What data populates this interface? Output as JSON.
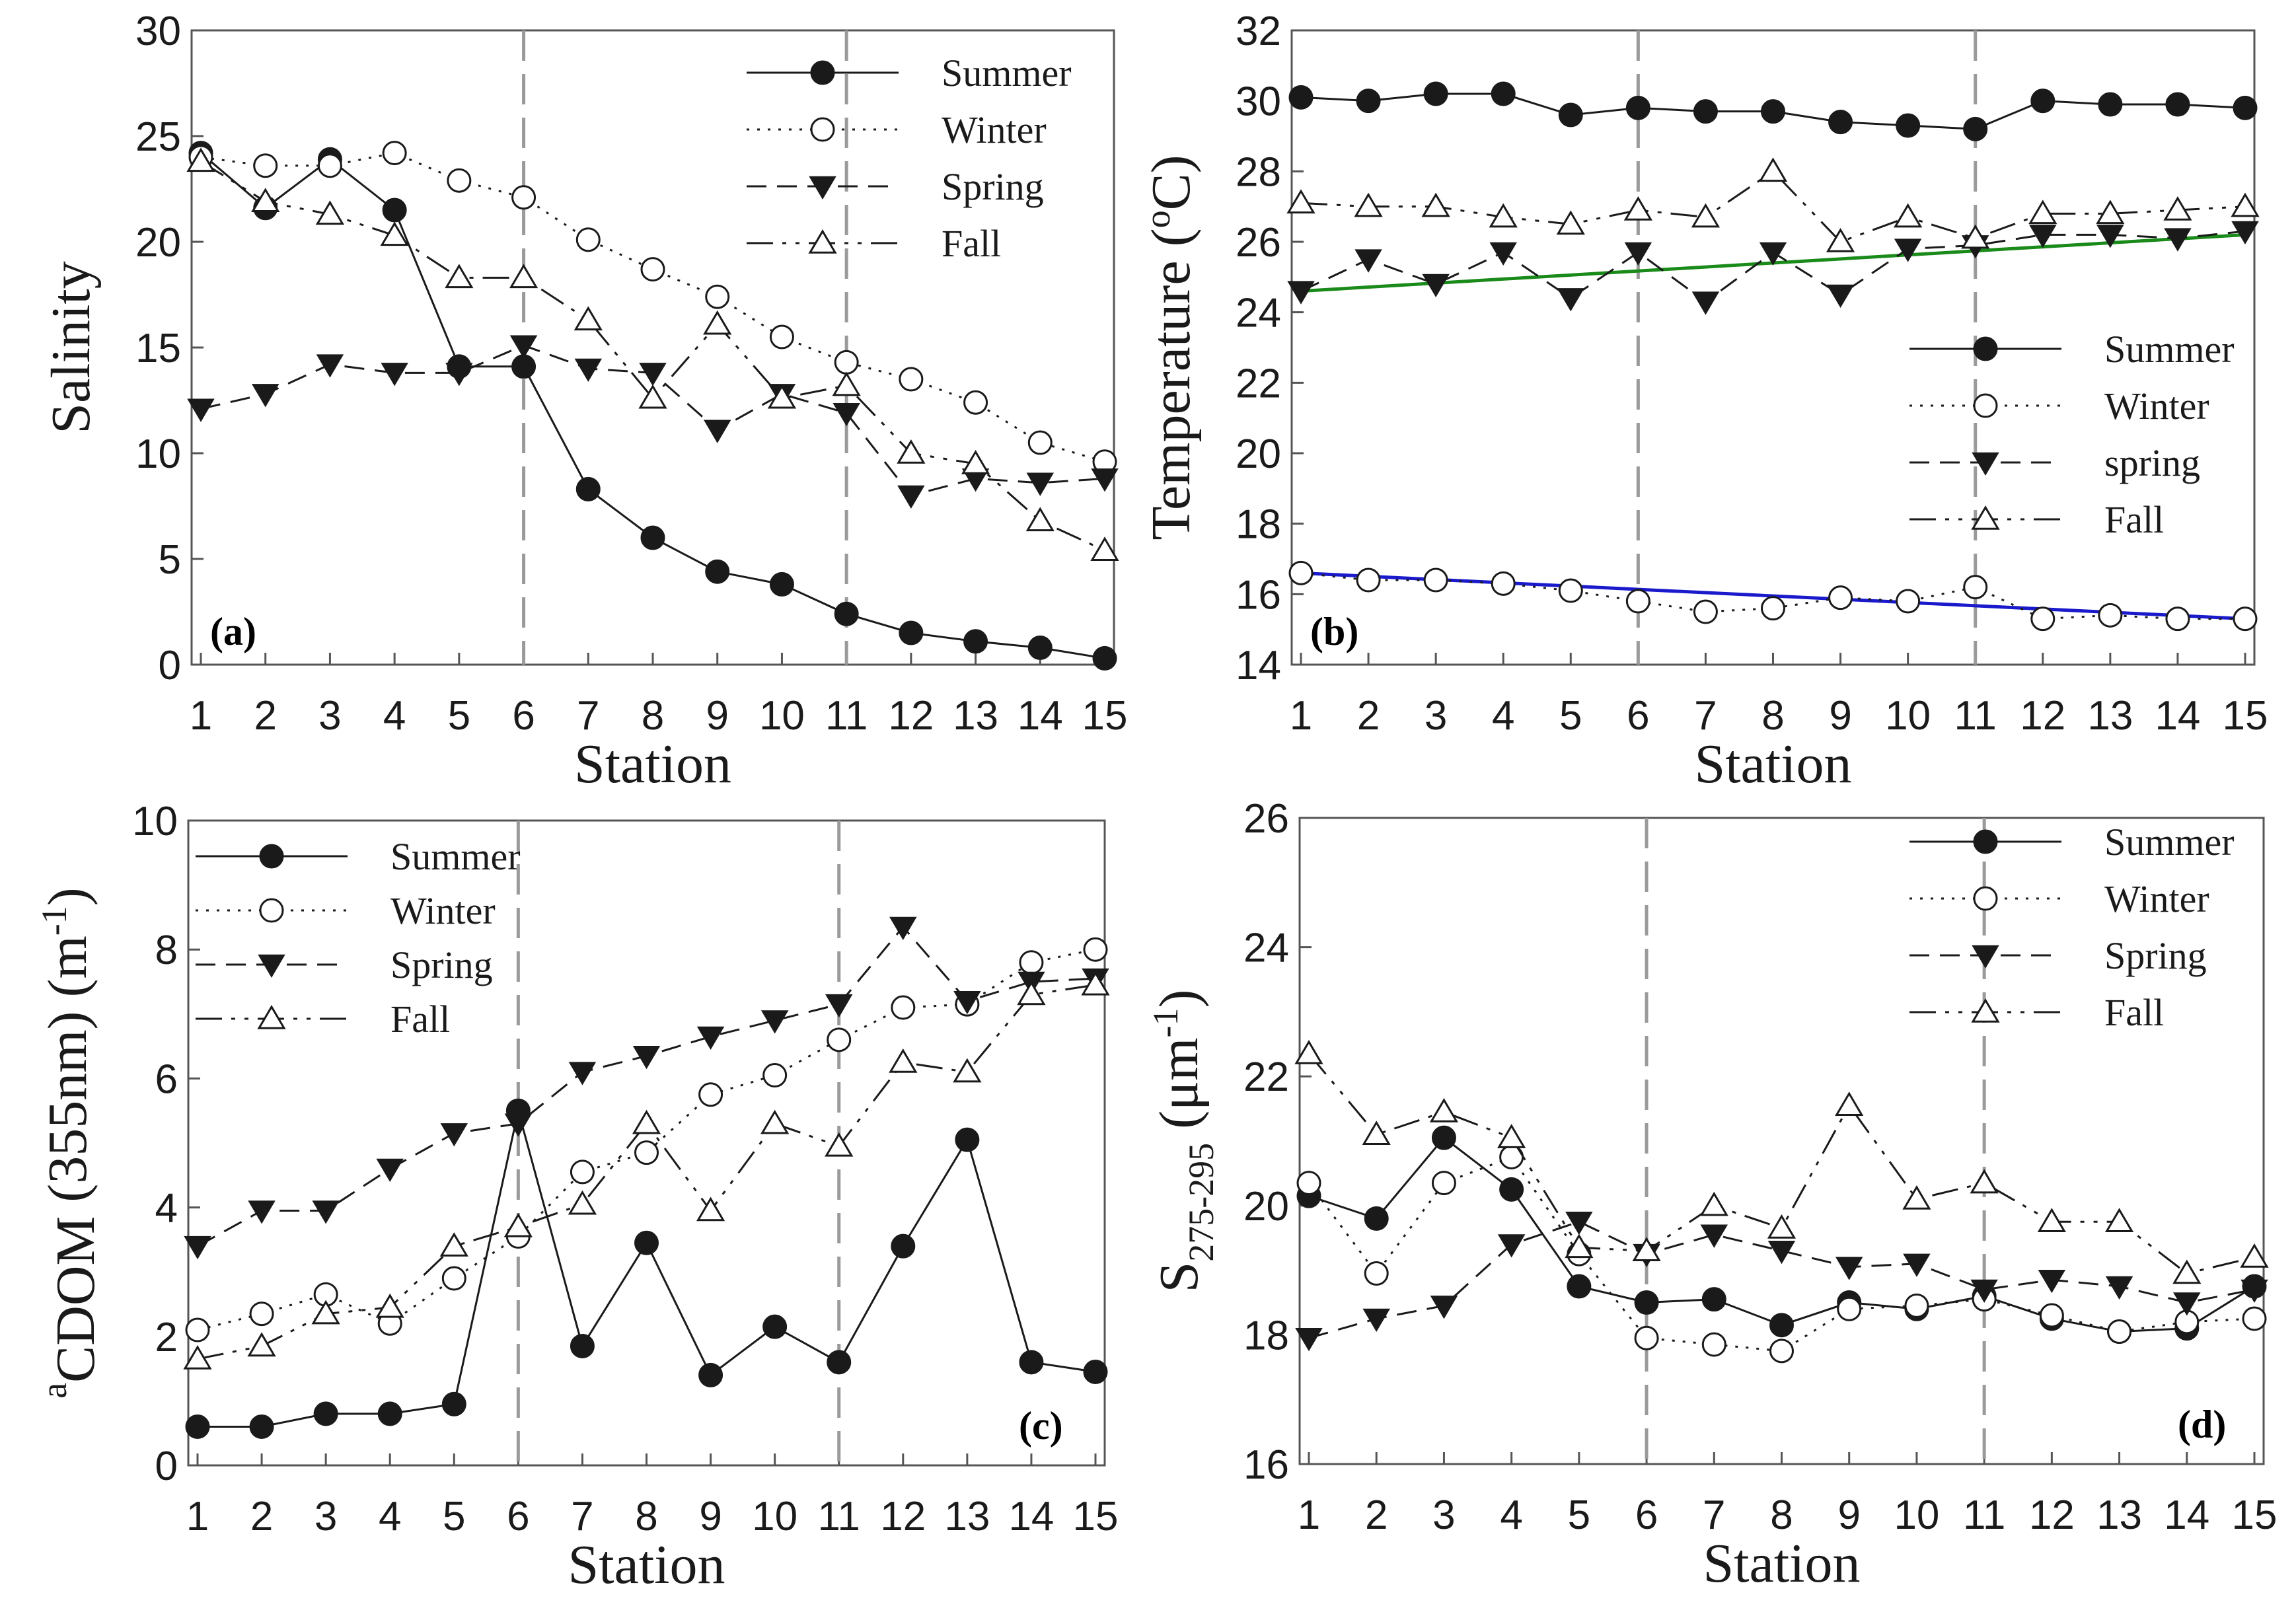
{
  "colors": {
    "series": "#1a1a1a",
    "vref": "#9a9a9a",
    "spring_trend": "#1a8a1a",
    "winter_trend": "#1a1acc"
  },
  "chart_data": [
    {
      "id": "a",
      "type": "line",
      "panel_label": "(a)",
      "ylabel": "Salinity",
      "xlabel": "Station",
      "x": [
        1,
        2,
        3,
        4,
        5,
        6,
        7,
        8,
        9,
        10,
        11,
        12,
        13,
        14,
        15
      ],
      "xticks": [
        "1",
        "2",
        "3",
        "4",
        "5",
        "6",
        "7",
        "8",
        "9",
        "10",
        "11",
        "12",
        "13",
        "14",
        "15"
      ],
      "ylim": [
        0,
        30
      ],
      "yticks": [
        "0",
        "5",
        "10",
        "15",
        "20",
        "25",
        "30"
      ],
      "yticks_val": [
        0,
        5,
        10,
        15,
        20,
        25,
        30
      ],
      "vlines": [
        6,
        11
      ],
      "legend_position": "top-right",
      "series": [
        {
          "name": "Summer",
          "marker": "filled-circle",
          "dash": "solid",
          "values": [
            24.2,
            21.6,
            23.9,
            21.5,
            14.1,
            14.1,
            8.3,
            6.0,
            4.4,
            3.8,
            2.4,
            1.5,
            1.1,
            0.8,
            0.3
          ]
        },
        {
          "name": "Winter",
          "marker": "open-circle",
          "dash": "dotted",
          "values": [
            24.0,
            23.6,
            23.6,
            24.2,
            22.9,
            22.1,
            20.1,
            18.7,
            17.4,
            15.5,
            14.3,
            13.5,
            12.4,
            10.5,
            9.6
          ]
        },
        {
          "name": "Spring",
          "marker": "filled-triangle-down",
          "dash": "dashed",
          "values": [
            12.1,
            12.8,
            14.2,
            13.8,
            13.8,
            15.1,
            14.0,
            13.8,
            11.1,
            12.8,
            11.9,
            8.0,
            8.8,
            8.6,
            8.8
          ]
        },
        {
          "name": "Fall",
          "marker": "open-triangle-up",
          "dash": "dashdotdot",
          "values": [
            23.8,
            21.9,
            21.3,
            20.3,
            18.3,
            18.3,
            16.3,
            12.6,
            16.1,
            12.6,
            13.2,
            10.0,
            9.5,
            6.8,
            5.4
          ]
        }
      ]
    },
    {
      "id": "b",
      "type": "line",
      "panel_label": "(b)",
      "ylabel": "Temperature (",
      "ylabel_sup": "o",
      "ylabel_tail": "C)",
      "xlabel": "Station",
      "x": [
        1,
        2,
        3,
        4,
        5,
        6,
        7,
        8,
        9,
        10,
        11,
        12,
        13,
        14,
        15
      ],
      "xticks": [
        "1",
        "2",
        "3",
        "4",
        "5",
        "6",
        "7",
        "8",
        "9",
        "10",
        "11",
        "12",
        "13",
        "14",
        "15"
      ],
      "ylim": [
        14,
        32
      ],
      "yticks": [
        "14",
        "16",
        "18",
        "20",
        "22",
        "24",
        "26",
        "28",
        "30",
        "32"
      ],
      "yticks_val": [
        14,
        16,
        18,
        20,
        22,
        24,
        26,
        28,
        30,
        32
      ],
      "vlines": [
        6,
        11
      ],
      "legend_position": "middle-right",
      "trendlines": [
        {
          "name": "spring-trend",
          "from": [
            1,
            24.6
          ],
          "to": [
            15,
            26.2
          ],
          "color_key": "spring_trend"
        },
        {
          "name": "winter-trend",
          "from": [
            1,
            16.6
          ],
          "to": [
            15,
            15.3
          ],
          "color_key": "winter_trend"
        }
      ],
      "series": [
        {
          "name": "Summer",
          "marker": "filled-circle",
          "dash": "solid",
          "values": [
            30.1,
            30.0,
            30.2,
            30.2,
            29.6,
            29.8,
            29.7,
            29.7,
            29.4,
            29.3,
            29.2,
            30.0,
            29.9,
            29.9,
            29.8
          ]
        },
        {
          "name": "Winter",
          "marker": "open-circle",
          "dash": "dotted",
          "values": [
            16.6,
            16.4,
            16.4,
            16.3,
            16.1,
            15.8,
            15.5,
            15.6,
            15.9,
            15.8,
            16.2,
            15.3,
            15.4,
            15.3,
            15.3
          ]
        },
        {
          "name": "spring",
          "marker": "filled-triangle-down",
          "dash": "dashed",
          "values": [
            24.6,
            25.5,
            24.8,
            25.7,
            24.4,
            25.7,
            24.3,
            25.7,
            24.5,
            25.8,
            25.9,
            26.2,
            26.2,
            26.1,
            26.3
          ]
        },
        {
          "name": "Fall",
          "marker": "open-triangle-up",
          "dash": "dashdotdot",
          "values": [
            27.1,
            27.0,
            27.0,
            26.7,
            26.5,
            26.9,
            26.7,
            28.0,
            26.0,
            26.7,
            26.1,
            26.8,
            26.8,
            26.9,
            27.0
          ]
        }
      ]
    },
    {
      "id": "c",
      "type": "line",
      "panel_label": "(c)",
      "ylabel_a": "a",
      "ylabel_sub": "CDOM",
      "ylabel_tail": " (355nm) (m",
      "ylabel_sup": "-1",
      "ylabel_end": ")",
      "xlabel": "Station",
      "x": [
        1,
        2,
        3,
        4,
        5,
        6,
        7,
        8,
        9,
        10,
        11,
        12,
        13,
        14,
        15
      ],
      "xticks": [
        "1",
        "2",
        "3",
        "4",
        "5",
        "6",
        "7",
        "8",
        "9",
        "10",
        "11",
        "12",
        "13",
        "14",
        "15"
      ],
      "ylim": [
        0,
        10
      ],
      "yticks": [
        "0",
        "2",
        "4",
        "6",
        "8",
        "10"
      ],
      "yticks_val": [
        0,
        2,
        4,
        6,
        8,
        10
      ],
      "vlines": [
        6,
        11
      ],
      "legend_position": "top-left",
      "series": [
        {
          "name": "Summer",
          "marker": "filled-circle",
          "dash": "solid",
          "values": [
            0.6,
            0.6,
            0.8,
            0.8,
            0.95,
            5.5,
            1.85,
            3.45,
            1.4,
            2.15,
            1.6,
            3.4,
            5.05,
            1.6,
            1.45
          ]
        },
        {
          "name": "Winter",
          "marker": "open-circle",
          "dash": "dotted",
          "values": [
            2.1,
            2.35,
            2.65,
            2.2,
            2.9,
            3.55,
            4.55,
            4.85,
            5.75,
            6.05,
            6.6,
            7.1,
            7.15,
            7.8,
            8.0
          ]
        },
        {
          "name": "Spring",
          "marker": "filled-triangle-down",
          "dash": "dashed",
          "values": [
            3.4,
            3.95,
            3.95,
            4.6,
            5.15,
            5.3,
            6.1,
            6.35,
            6.65,
            6.9,
            7.15,
            8.35,
            7.2,
            7.5,
            7.55
          ]
        },
        {
          "name": "Fall",
          "marker": "open-triangle-up",
          "dash": "dashdotdot",
          "values": [
            1.65,
            1.85,
            2.35,
            2.45,
            3.4,
            3.7,
            4.05,
            5.3,
            3.95,
            5.3,
            4.95,
            6.25,
            6.1,
            7.3,
            7.45
          ]
        }
      ]
    },
    {
      "id": "d",
      "type": "line",
      "panel_label": "(d)",
      "ylabel_s": "S",
      "ylabel_sub": "275-295",
      "ylabel_tail": " (μm",
      "ylabel_sup": "-1",
      "ylabel_end": ")",
      "xlabel": "Station",
      "x": [
        1,
        2,
        3,
        4,
        5,
        6,
        7,
        8,
        9,
        10,
        11,
        12,
        13,
        14,
        15
      ],
      "xticks": [
        "1",
        "2",
        "3",
        "4",
        "5",
        "6",
        "7",
        "8",
        "9",
        "10",
        "11",
        "12",
        "13",
        "14",
        "15"
      ],
      "ylim": [
        16,
        26
      ],
      "yticks": [
        "16",
        "18",
        "20",
        "22",
        "24",
        "26"
      ],
      "yticks_val": [
        16,
        18,
        20,
        22,
        24,
        26
      ],
      "vlines": [
        6,
        11
      ],
      "legend_position": "top-right",
      "series": [
        {
          "name": "Summer",
          "marker": "filled-circle",
          "dash": "solid",
          "values": [
            20.15,
            19.8,
            21.05,
            20.25,
            18.75,
            18.5,
            18.55,
            18.15,
            18.5,
            18.4,
            18.6,
            18.25,
            18.05,
            18.1,
            18.75
          ]
        },
        {
          "name": "Winter",
          "marker": "open-circle",
          "dash": "dotted",
          "values": [
            20.35,
            18.95,
            20.35,
            20.75,
            19.25,
            17.95,
            17.85,
            17.75,
            18.4,
            18.45,
            18.55,
            18.3,
            18.05,
            18.2,
            18.25
          ]
        },
        {
          "name": "Spring",
          "marker": "filled-triangle-down",
          "dash": "dashed",
          "values": [
            17.95,
            18.25,
            18.45,
            19.4,
            19.75,
            19.25,
            19.55,
            19.3,
            19.05,
            19.1,
            18.7,
            18.85,
            18.75,
            18.5,
            18.7
          ]
        },
        {
          "name": "Fall",
          "marker": "open-triangle-up",
          "dash": "dashdotdot",
          "values": [
            22.35,
            21.1,
            21.45,
            21.05,
            19.35,
            19.3,
            20.0,
            19.65,
            21.55,
            20.1,
            20.35,
            19.75,
            19.75,
            18.95,
            19.2
          ]
        }
      ]
    }
  ]
}
